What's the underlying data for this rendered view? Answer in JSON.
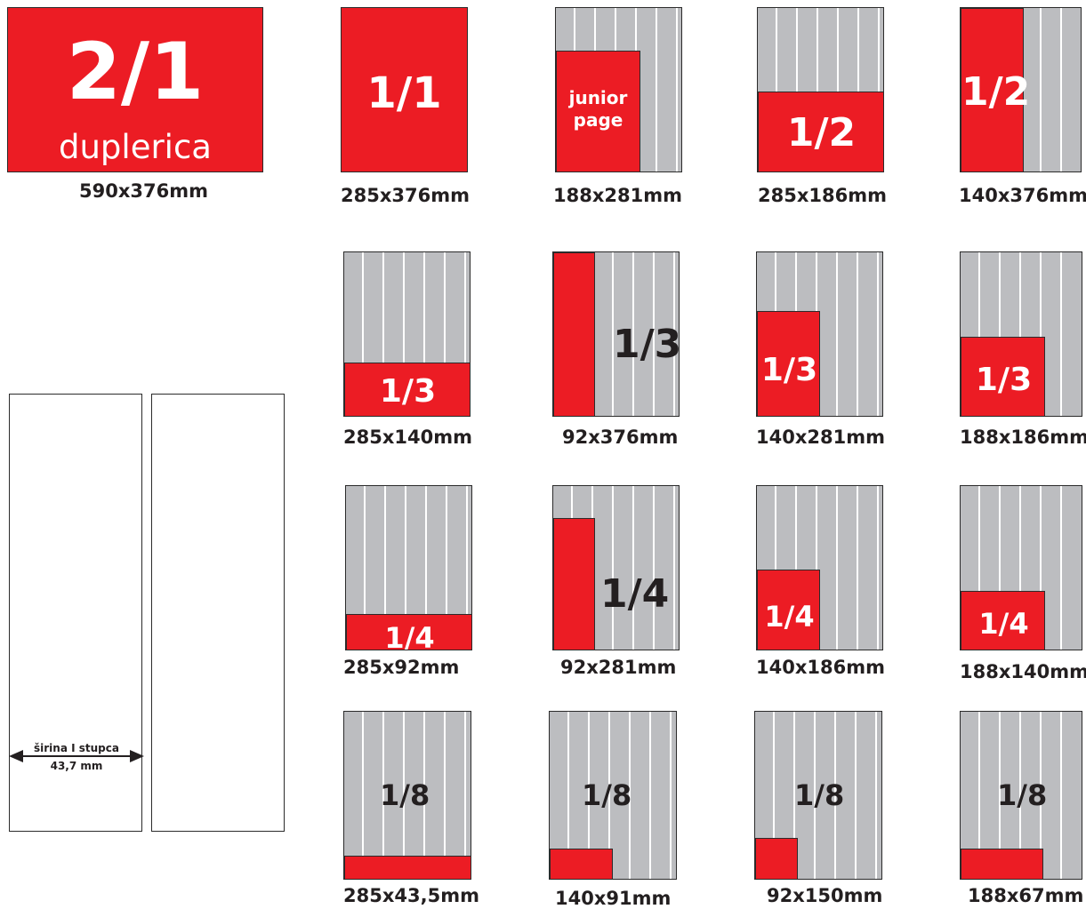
{
  "spread": {
    "fraction": "2/1",
    "label": "duplerica",
    "size": "590x376mm"
  },
  "formats": [
    {
      "fraction": "1/1",
      "size": "285x376mm"
    },
    {
      "fraction": "junior page",
      "size": "188x281mm"
    },
    {
      "fraction": "1/2",
      "size": "285x186mm"
    },
    {
      "fraction": "1/2",
      "size": "140x376mm"
    },
    {
      "fraction": "1/3",
      "size": "285x140mm"
    },
    {
      "fraction": "1/3",
      "size": "92x376mm"
    },
    {
      "fraction": "1/3",
      "size": "140x281mm"
    },
    {
      "fraction": "1/3",
      "size": "188x186mm"
    },
    {
      "fraction": "1/4",
      "size": "285x92mm"
    },
    {
      "fraction": "1/4",
      "size": "92x281mm"
    },
    {
      "fraction": "1/4",
      "size": "140x186mm"
    },
    {
      "fraction": "1/4",
      "size": "188x140mm"
    },
    {
      "fraction": "1/8",
      "size": "285x43,5mm"
    },
    {
      "fraction": "1/8",
      "size": "140x91mm"
    },
    {
      "fraction": "1/8",
      "size": "92x150mm"
    },
    {
      "fraction": "1/8",
      "size": "188x67mm"
    }
  ],
  "column": {
    "label": "širina I stupca",
    "width": "43,7 mm"
  },
  "colors": {
    "ad": "#ec1c24",
    "page": "#bcbdc0",
    "column_rule": "#ffffff",
    "text": "#231f20"
  }
}
